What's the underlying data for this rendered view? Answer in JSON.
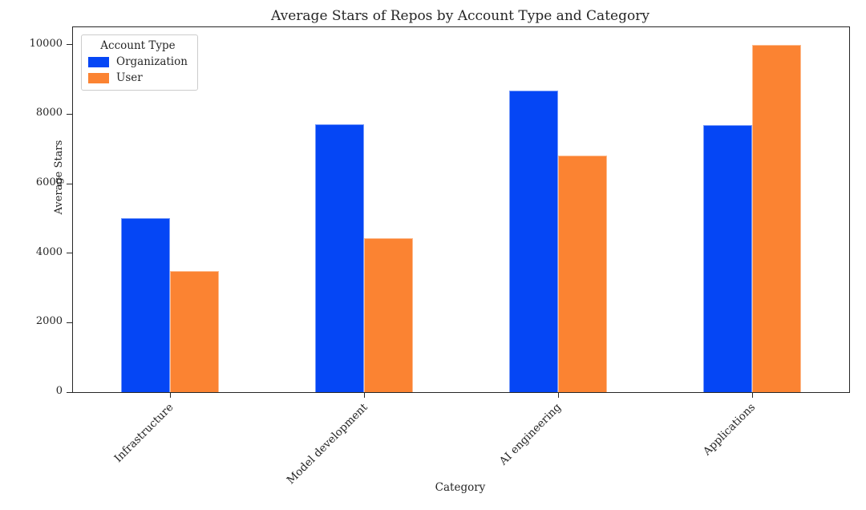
{
  "page": {
    "background": "#ffffff",
    "axis_color": "#262626",
    "text_color": "#262626"
  },
  "chart_data": {
    "type": "bar",
    "title": "Average Stars of Repos by Account Type and Category",
    "xlabel": "Category",
    "ylabel": "Average Stars",
    "legend_title": "Account Type",
    "legend_position": "upper left",
    "grid": false,
    "categories": [
      "Infrastructure",
      "Model development",
      "AI engineering",
      "Applications"
    ],
    "series": [
      {
        "name": "Organization",
        "color": "#0546f5",
        "values": [
          5000,
          7700,
          8670,
          7680
        ]
      },
      {
        "name": "User",
        "color": "#fb8332",
        "values": [
          3480,
          4430,
          6800,
          10000
        ]
      }
    ],
    "ylim": [
      0,
      10500
    ],
    "yticks": [
      0,
      2000,
      4000,
      6000,
      8000,
      10000
    ]
  }
}
